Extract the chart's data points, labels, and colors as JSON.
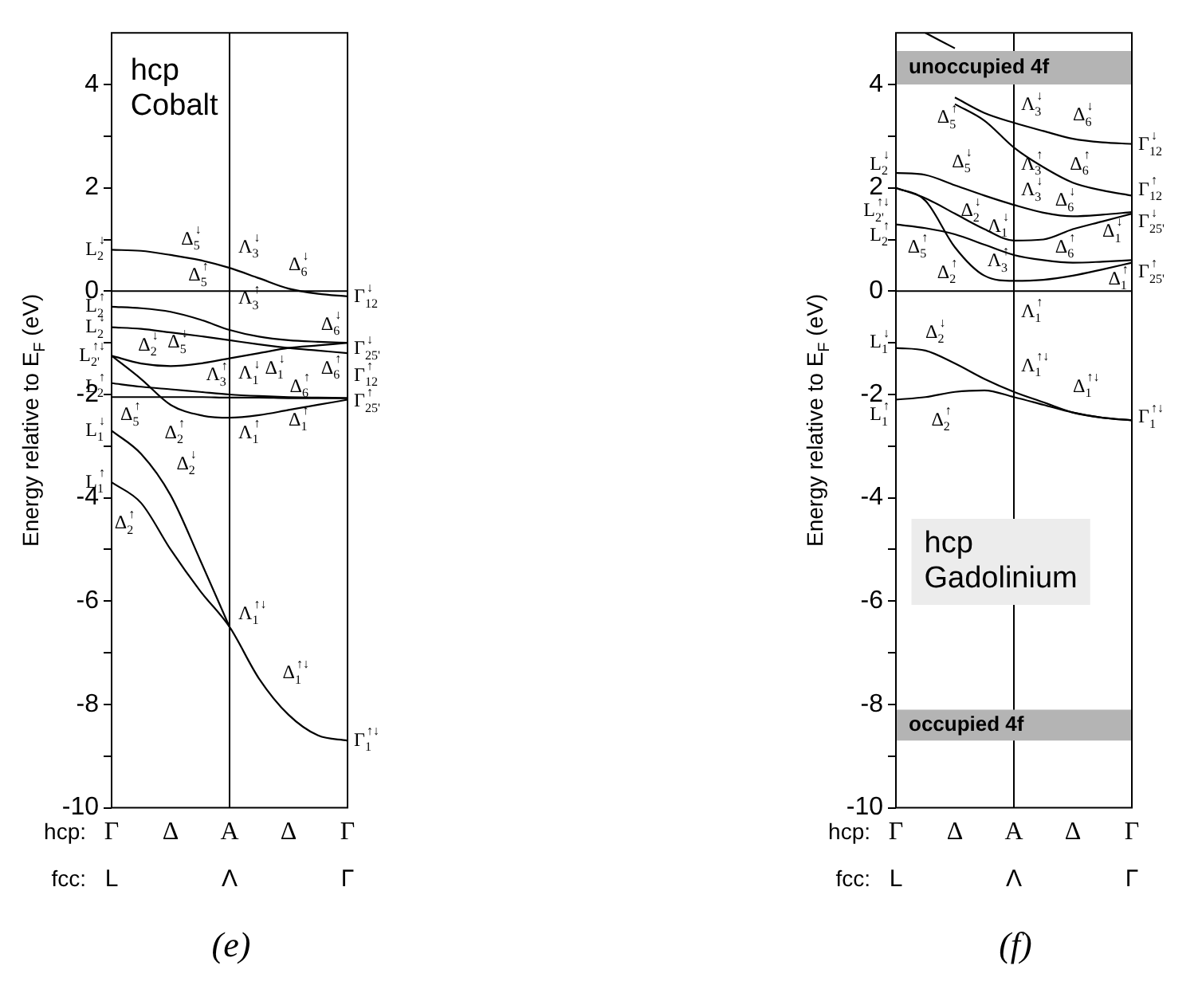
{
  "chart_data": [
    {
      "type": "line",
      "xlabel": "hcp:",
      "ylabel": "Energy relative to E$_{F}$ (eV)",
      "categories": [
        "Γ",
        null,
        "Δ",
        null,
        "A",
        null,
        "Δ",
        null,
        "Γ"
      ],
      "ylim": [
        -10,
        5
      ],
      "yticks": [
        -10,
        {
          "value": -9,
          "label": null
        },
        -8,
        {
          "value": -7,
          "label": null
        },
        -6,
        {
          "value": -5,
          "label": null
        },
        -4,
        {
          "value": -3,
          "label": null
        },
        -2,
        {
          "value": -1,
          "label": null
        },
        0,
        {
          "value": 1,
          "label": null
        },
        2,
        {
          "value": 3,
          "label": null
        },
        4
      ],
      "grid": false,
      "legend": false,
      "marker": "none",
      "line_style": "solid",
      "series": [
        {
          "color": "#000000",
          "values": [
            0.8,
            0.78,
            0.7,
            0.6,
            0.45,
            0.25,
            0.05,
            -0.05,
            -0.1
          ]
        },
        {
          "color": "#000000",
          "values": [
            -0.3,
            -0.33,
            -0.4,
            -0.55,
            -0.75,
            -0.88,
            -0.95,
            -0.98,
            -1.0
          ]
        },
        {
          "color": "#000000",
          "values": [
            -0.7,
            -0.73,
            -0.8,
            -0.87,
            -0.95,
            -1.03,
            -1.1,
            -1.15,
            -1.2
          ]
        },
        {
          "color": "#000000",
          "values": [
            -1.25,
            -1.4,
            -1.45,
            -1.4,
            -1.3,
            -1.2,
            -1.1,
            -1.05,
            -1.0
          ]
        },
        {
          "color": "#000000",
          "values": [
            -1.25,
            -1.7,
            -2.2,
            -2.4,
            -2.45,
            -2.4,
            -2.3,
            -2.2,
            -2.1
          ]
        },
        {
          "color": "#000000",
          "values": [
            -1.78,
            -1.85,
            -1.9,
            -1.95,
            -2.0,
            -2.03,
            -2.05,
            -2.06,
            -2.07
          ]
        },
        {
          "color": "#000000",
          "values": [
            -2.05,
            -2.05,
            -2.05,
            -2.05,
            -2.06,
            -2.06,
            -2.07,
            -2.07,
            -2.07
          ]
        },
        {
          "color": "#000000",
          "values": [
            -2.7,
            -3.15,
            -3.95,
            -5.2,
            -6.5,
            null,
            null,
            null,
            null
          ]
        },
        {
          "color": "#000000",
          "values": [
            -3.7,
            -4.1,
            -5.0,
            -5.8,
            -6.5,
            -7.5,
            -8.2,
            -8.6,
            -8.7
          ]
        }
      ],
      "ref_lines": [
        {
          "axis": "x",
          "value": "A",
          "color": "#000000"
        },
        {
          "axis": "y",
          "value": 0,
          "color": "#000000"
        }
      ],
      "annotations": [
        "hcp\nCobalt",
        "(e)",
        "fcc:",
        "L",
        "Λ",
        "Γ",
        "L$_{2}$$^{↓}$",
        "L$_{2}$$^{↑}$",
        "L$_{2}$$^{↓}$",
        "L$_{2'}$$^{↑↓}$",
        "L$_{2}$$^{↑}$",
        "L$_{1}$$^{↓}$",
        "L$_{1}$$^{↑}$",
        "Γ$_{12}$$^{↓}$",
        "Γ$_{25'}$$^{↓}$",
        "Γ$_{12}$$^{↑}$",
        "Γ$_{25'}$$^{↑}$",
        "Γ$_{1}$$^{↑↓}$",
        "Δ$_{5}$$^{↓}$",
        "Λ$_{3}$$^{↓}$",
        "Δ$_{6}$$^{↓}$",
        "Δ$_{5}$$^{↑}$",
        "Λ$_{3}$$^{↑}$",
        "Δ$_{6}$$^{↓}$",
        "Δ$_{2}$$^{↓}$",
        "Δ$_{5}$$^{↓}$",
        "Λ$_{1}$$^{↓}$",
        "Δ$_{1}$$^{↓}$",
        "Δ$_{6}$$^{↑}$",
        "Λ$_{3}$$^{↑}$",
        "Δ$_{6}$$^{↑}$",
        "Δ$_{5}$$^{↑}$",
        "Λ$_{1}$$^{↑}$",
        "Δ$_{1}$$^{↑}$",
        "Δ$_{2}$$^{↑}$",
        "Δ$_{2}$$^{↓}$",
        "Δ$_{2}$$^{↑}$",
        "Λ$_{1}$$^{↑↓}$",
        "Δ$_{1}$$^{↑↓}$"
      ]
    },
    {
      "type": "line",
      "xlabel": "hcp:",
      "ylabel": "Energy relative to E$_{F}$ (eV)",
      "categories": [
        "Γ",
        null,
        "Δ",
        null,
        "A",
        null,
        "Δ",
        null,
        "Γ"
      ],
      "ylim": [
        -10,
        5
      ],
      "yticks": [
        -10,
        {
          "value": -9,
          "label": null
        },
        -8,
        {
          "value": -7,
          "label": null
        },
        -6,
        {
          "value": -5,
          "label": null
        },
        -4,
        {
          "value": -3,
          "label": null
        },
        -2,
        {
          "value": -1,
          "label": null
        },
        0,
        {
          "value": 1,
          "label": null
        },
        2,
        {
          "value": 3,
          "label": null
        },
        4
      ],
      "grid": false,
      "legend": false,
      "marker": "none",
      "line_style": "solid",
      "series": [
        {
          "color": "#000000",
          "values": [
            null,
            5.0,
            4.7,
            null,
            null,
            null,
            null,
            null,
            null
          ]
        },
        {
          "color": "#000000",
          "values": [
            null,
            null,
            3.75,
            3.45,
            3.26,
            3.1,
            2.95,
            2.88,
            2.85
          ]
        },
        {
          "color": "#000000",
          "values": [
            null,
            null,
            3.62,
            3.3,
            2.78,
            2.4,
            2.1,
            1.95,
            1.85
          ]
        },
        {
          "color": "#000000",
          "values": [
            2.29,
            2.25,
            2.05,
            1.85,
            1.67,
            1.52,
            1.45,
            1.48,
            1.53
          ]
        },
        {
          "color": "#000000",
          "values": [
            2.0,
            1.8,
            1.5,
            1.2,
            0.98,
            1.0,
            1.2,
            1.35,
            1.5
          ]
        },
        {
          "color": "#000000",
          "values": [
            2.0,
            1.75,
            0.85,
            0.3,
            0.2,
            0.22,
            0.3,
            0.42,
            0.55
          ]
        },
        {
          "color": "#000000",
          "values": [
            1.29,
            1.22,
            1.1,
            0.9,
            0.7,
            0.6,
            0.55,
            0.57,
            0.6
          ]
        },
        {
          "color": "#000000",
          "values": [
            -1.1,
            -1.15,
            -1.4,
            -1.7,
            -1.95,
            -2.15,
            -2.35,
            -2.45,
            -2.5
          ]
        },
        {
          "color": "#000000",
          "values": [
            -2.1,
            -2.05,
            -1.95,
            -1.92,
            -2.05,
            -2.2,
            -2.35,
            -2.45,
            -2.5
          ]
        }
      ],
      "ref_lines": [
        {
          "axis": "x",
          "value": "A",
          "color": "#000000"
        },
        {
          "axis": "y",
          "value": 0,
          "color": "#000000"
        }
      ],
      "bands": [
        {
          "axis": "y",
          "from": 4.0,
          "to": 4.65,
          "label": "unoccupied 4f",
          "color": "#b4b4b4"
        },
        {
          "axis": "y",
          "from": -8.7,
          "to": -8.1,
          "label": "occupied 4f",
          "color": "#b4b4b4"
        }
      ],
      "annotations": [
        "hcp\nGadolinium",
        "(f)",
        "fcc:",
        "L",
        "Λ",
        "Γ",
        "L$_{2}$$^{↓}$",
        "L$_{2'}$$^{↑↓}$",
        "L$_{2}$$^{↑}$",
        "L$_{1}$$^{↓}$",
        "L$_{1}$$^{↑}$",
        "Γ$_{12}$$^{↓}$",
        "Γ$_{12}$$^{↑}$",
        "Γ$_{25'}$$^{↓}$",
        "Γ$_{25'}$$^{↑}$",
        "Γ$_{1}$$^{↑↓}$",
        "Δ$_{5}$$^{↑}$",
        "Λ$_{3}$$^{↓}$",
        "Δ$_{6}$$^{↓}$",
        "Δ$_{5}$$^{↓}$",
        "Λ$_{3}$$^{↑}$",
        "Δ$_{6}$$^{↑}$",
        "Δ$_{2}$$^{↓}$",
        "Λ$_{3}$$^{↓}$",
        "Δ$_{6}$$^{↓}$",
        "Λ$_{1}$$^{↓}$",
        "Δ$_{1}$$^{↓}$",
        "Δ$_{5}$$^{↑}$",
        "Λ$_{3}$$^{↑}$",
        "Δ$_{6}$$^{↑}$",
        "Δ$_{2}$$^{↑}$",
        "Δ$_{1}$$^{↑}$",
        "Λ$_{1}$$^{↑}$",
        "Δ$_{2}$$^{↓}$",
        "Λ$_{1}$$^{↑↓}$",
        "Δ$_{1}$$^{↑↓}$",
        "Δ$_{2}$$^{↑}$"
      ]
    }
  ]
}
